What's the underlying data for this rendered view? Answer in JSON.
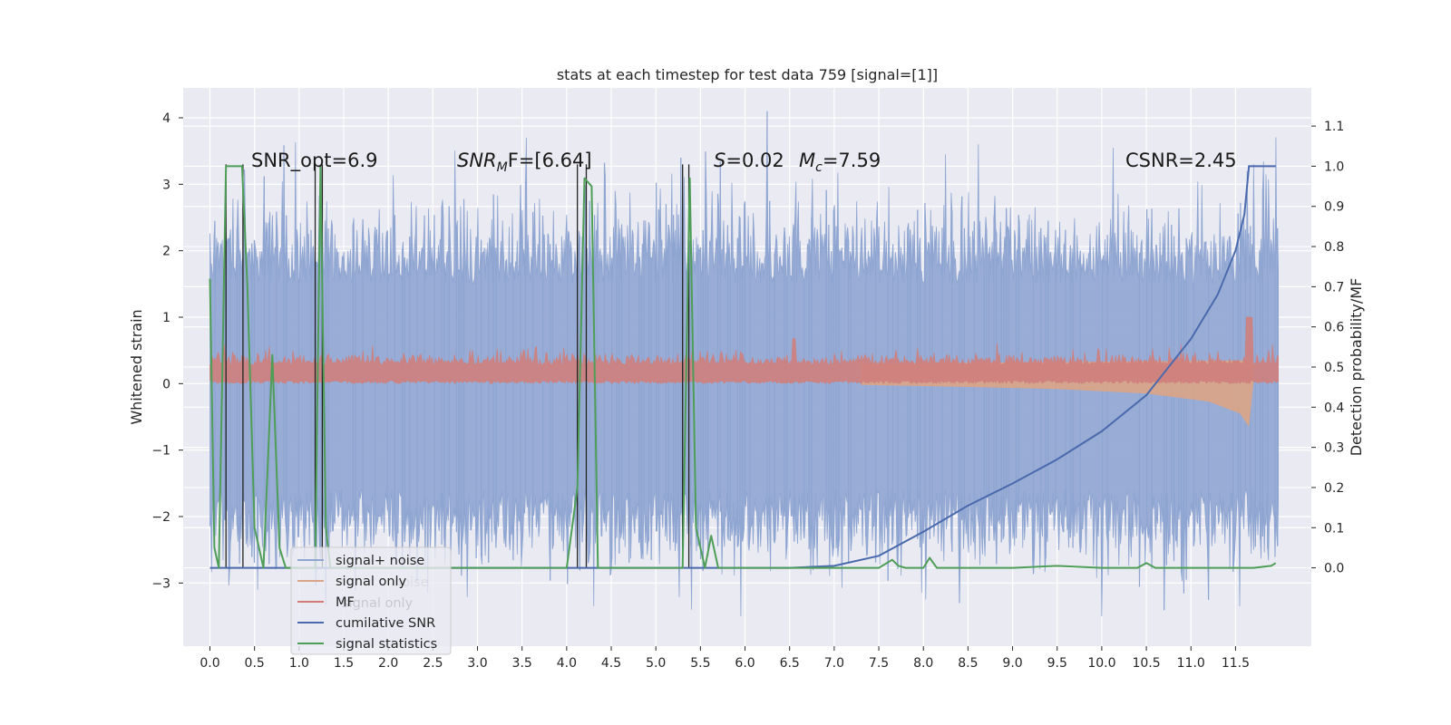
{
  "chart_data": {
    "type": "line",
    "title": "stats at each timestep for test data 759 [signal=[1]]",
    "ylabel": "Whitened strain",
    "y2label": "Detection probability/MF",
    "xlim": [
      -0.3,
      12.35
    ],
    "ylim": [
      -3.95,
      4.45
    ],
    "y2lim": [
      -0.195,
      1.195
    ],
    "x_ticks": [
      "0.0",
      "0.5",
      "1.0",
      "1.5",
      "2.0",
      "2.5",
      "3.0",
      "3.5",
      "4.0",
      "4.5",
      "5.0",
      "5.5",
      "6.0",
      "6.5",
      "7.0",
      "7.5",
      "8.0",
      "8.5",
      "9.0",
      "9.5",
      "10.0",
      "10.5",
      "11.0",
      "11.5"
    ],
    "y_ticks": [
      "4",
      "3",
      "2",
      "1",
      "0",
      "−1",
      "−2",
      "−3"
    ],
    "y2_ticks": [
      "1.1",
      "1.0",
      "0.9",
      "0.8",
      "0.7",
      "0.6",
      "0.5",
      "0.4",
      "0.3",
      "0.2",
      "0.1",
      "0.0"
    ],
    "grid": true,
    "annotations": {
      "snr_opt": "SNR_opt=6.9",
      "snr_mf_sym": "SNR",
      "snr_mf_sub": "M",
      "snr_mf_rest": "F=[6.64]",
      "s_sym": "S",
      "s_rest": "=0.02",
      "mc_sym": "M",
      "mc_sub": "c",
      "mc_rest": "=7.59",
      "csnr": "CSNR=2.45"
    },
    "legend": {
      "position": "lower-left",
      "entries": [
        {
          "label": "signal+ noise",
          "color": "#8fa6d1"
        },
        {
          "label": "signal only",
          "color": "#d8a48a"
        },
        {
          "label": "MF",
          "color": "#d47a78"
        },
        {
          "label": "cumilative SNR",
          "color": "#4a6aad"
        },
        {
          "label": "signal statistics",
          "color": "#4e9e58"
        }
      ],
      "ghost_labels": [
        "noise",
        "signal only"
      ]
    },
    "series": [
      {
        "name": "signal+ noise",
        "color": "#8fa6d1",
        "axis": "left",
        "style": "noise band",
        "typical_range": [
          -1.9,
          2.1
        ],
        "extremes": [
          -3.5,
          4.1
        ]
      },
      {
        "name": "signal only",
        "color": "#d8a48a",
        "axis": "left",
        "style": "chirp envelope",
        "x": [
          7.3,
          8.5,
          9.5,
          10.5,
          11.2,
          11.55,
          11.65,
          11.7
        ],
        "values": [
          -0.02,
          -0.05,
          -0.08,
          -0.15,
          -0.27,
          -0.45,
          -0.65,
          0.0
        ]
      },
      {
        "name": "MF",
        "color": "#d47a78",
        "axis": "left",
        "style": "positive band",
        "typical_range": [
          0.0,
          0.35
        ],
        "peak": [
          11.65,
          1.0
        ]
      },
      {
        "name": "cumilative SNR",
        "color": "#4a6aad",
        "axis": "right",
        "x": [
          0.0,
          6.5,
          7.0,
          7.5,
          8.0,
          8.5,
          9.0,
          9.5,
          10.0,
          10.5,
          11.0,
          11.3,
          11.5,
          11.6,
          11.65,
          11.7,
          11.95
        ],
        "values": [
          0.0,
          0.0,
          0.005,
          0.03,
          0.09,
          0.155,
          0.21,
          0.27,
          0.34,
          0.43,
          0.57,
          0.68,
          0.79,
          0.88,
          1.0,
          1.0,
          1.0
        ]
      },
      {
        "name": "signal statistics",
        "color": "#4e9e58",
        "axis": "right",
        "x": [
          0.0,
          0.05,
          0.1,
          0.18,
          0.22,
          0.26,
          0.36,
          0.42,
          0.5,
          0.6,
          0.7,
          0.78,
          0.85,
          1.0,
          1.18,
          1.24,
          1.3,
          1.35,
          2.0,
          3.0,
          4.0,
          4.12,
          4.2,
          4.28,
          4.35,
          5.0,
          5.3,
          5.38,
          5.45,
          5.55,
          5.62,
          5.7,
          6.0,
          6.5,
          7.0,
          7.5,
          7.65,
          7.72,
          7.8,
          8.0,
          8.07,
          8.15,
          8.5,
          9.0,
          9.5,
          10.0,
          10.4,
          10.5,
          10.6,
          11.0,
          11.5,
          11.7,
          11.9,
          11.95
        ],
        "values": [
          0.72,
          0.05,
          0.0,
          1.0,
          1.0,
          1.0,
          1.0,
          0.7,
          0.1,
          0.0,
          0.53,
          0.05,
          0.0,
          0.0,
          0.0,
          1.0,
          0.1,
          0.0,
          0.0,
          0.0,
          0.0,
          0.2,
          0.97,
          0.95,
          0.0,
          0.0,
          0.0,
          0.97,
          0.1,
          0.0,
          0.08,
          0.0,
          0.0,
          0.0,
          0.0,
          0.0,
          0.02,
          0.005,
          0.0,
          0.0,
          0.025,
          0.0,
          0.0,
          0.0,
          0.005,
          0.0,
          0.0,
          0.012,
          0.0,
          0.0,
          0.0,
          0.0,
          0.005,
          0.012
        ]
      }
    ],
    "event_markers": [
      {
        "x": [
          0.18,
          0.37
        ],
        "heights": [
          1.0,
          1.0
        ]
      },
      {
        "x": [
          1.18,
          1.26
        ],
        "heights": [
          1.0,
          1.0
        ]
      },
      {
        "x": [
          4.12,
          4.22
        ],
        "heights": [
          1.0,
          1.0
        ]
      },
      {
        "x": [
          5.3,
          5.37
        ],
        "heights": [
          1.0,
          1.0
        ]
      }
    ]
  }
}
